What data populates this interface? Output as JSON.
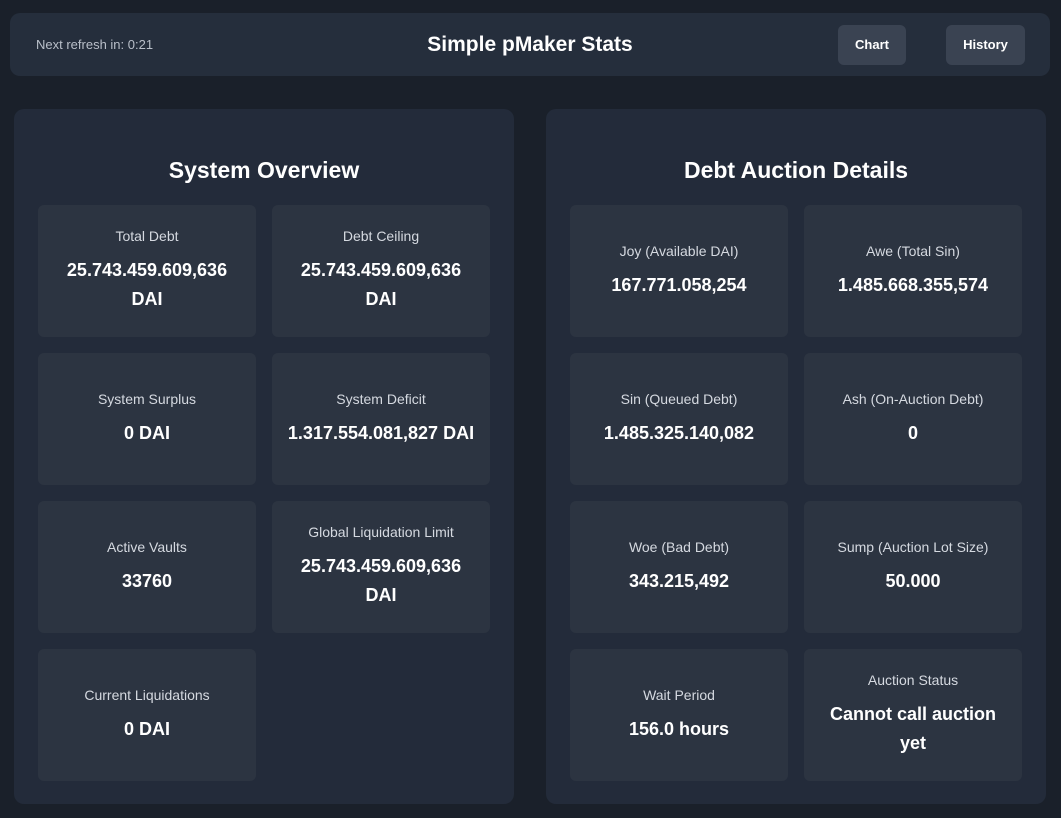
{
  "header": {
    "refresh_text": "Next refresh in: 0:21",
    "title": "Simple pMaker Stats",
    "chart_label": "Chart",
    "history_label": "History"
  },
  "system_overview": {
    "title": "System Overview",
    "cards": [
      {
        "label": "Total Debt",
        "value": "25.743.459.609,636 DAI"
      },
      {
        "label": "Debt Ceiling",
        "value": "25.743.459.609,636 DAI"
      },
      {
        "label": "System Surplus",
        "value": "0 DAI"
      },
      {
        "label": "System Deficit",
        "value": "1.317.554.081,827 DAI"
      },
      {
        "label": "Active Vaults",
        "value": "33760"
      },
      {
        "label": "Global Liquidation Limit",
        "value": "25.743.459.609,636 DAI"
      },
      {
        "label": "Current Liquidations",
        "value": "0 DAI"
      }
    ]
  },
  "debt_auction": {
    "title": "Debt Auction Details",
    "cards": [
      {
        "label": "Joy (Available DAI)",
        "value": "167.771.058,254"
      },
      {
        "label": "Awe (Total Sin)",
        "value": "1.485.668.355,574"
      },
      {
        "label": "Sin (Queued Debt)",
        "value": "1.485.325.140,082"
      },
      {
        "label": "Ash (On-Auction Debt)",
        "value": "0"
      },
      {
        "label": "Woe (Bad Debt)",
        "value": "343.215,492"
      },
      {
        "label": "Sump (Auction Lot Size)",
        "value": "50.000"
      },
      {
        "label": "Wait Period",
        "value": "156.0 hours"
      },
      {
        "label": "Auction Status",
        "value": "Cannot call auction yet"
      }
    ]
  }
}
